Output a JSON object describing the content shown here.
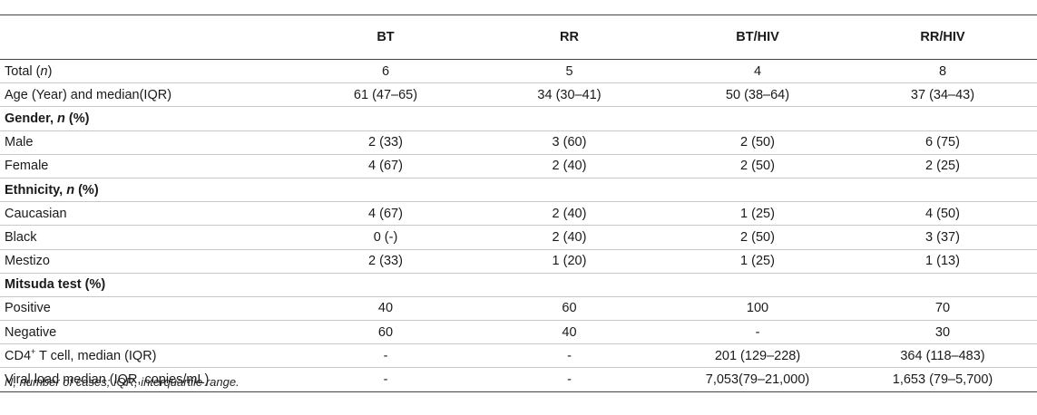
{
  "table": {
    "headers": [
      "",
      "BT",
      "RR",
      "BT/HIV",
      "RR/HIV"
    ],
    "rows": {
      "total": {
        "label_pre": "Total (",
        "label_italic": "n",
        "label_post": ")",
        "values": [
          "6",
          "5",
          "4",
          "8"
        ]
      },
      "age": {
        "label": "Age (Year) and median(IQR)",
        "values": [
          "61 (47–65)",
          "34 (30–41)",
          "50 (38–64)",
          "37 (34–43)"
        ]
      },
      "gender_header": {
        "label_pre": "Gender, ",
        "label_italic": "n",
        "label_post": " (%)"
      },
      "male": {
        "label": "Male",
        "values": [
          "2 (33)",
          "3 (60)",
          "2 (50)",
          "6 (75)"
        ]
      },
      "female": {
        "label": "Female",
        "values": [
          "4 (67)",
          "2 (40)",
          "2 (50)",
          "2 (25)"
        ]
      },
      "ethnicity_header": {
        "label_pre": "Ethnicity, ",
        "label_italic": "n",
        "label_post": " (%)"
      },
      "caucasian": {
        "label": "Caucasian",
        "values": [
          "4 (67)",
          "2 (40)",
          "1 (25)",
          "4 (50)"
        ]
      },
      "black": {
        "label": "Black",
        "values": [
          "0 (-)",
          "2 (40)",
          "2 (50)",
          "3 (37)"
        ]
      },
      "mestizo": {
        "label": "Mestizo",
        "values": [
          "2 (33)",
          "1 (20)",
          "1 (25)",
          "1 (13)"
        ]
      },
      "mitsuda_header": {
        "label": "Mitsuda test (%)"
      },
      "positive": {
        "label": "Positive",
        "values": [
          "40",
          "60",
          "100",
          "70"
        ]
      },
      "negative": {
        "label": "Negative",
        "values": [
          "60",
          "40",
          "-",
          "30"
        ]
      },
      "cd4": {
        "label_pre": "CD4",
        "label_sup": "+",
        "label_post": " T cell, median (IQR)",
        "values": [
          "-",
          "-",
          "201 (129–228)",
          "364 (118–483)"
        ]
      },
      "viral": {
        "label": "Viral load median (IQR, copies/mL)",
        "values": [
          "-",
          "-",
          "7,053(79–21,000)",
          "1,653 (79–5,700)"
        ]
      }
    }
  },
  "footnote": "N, number of cases; IQR, interquartile range."
}
